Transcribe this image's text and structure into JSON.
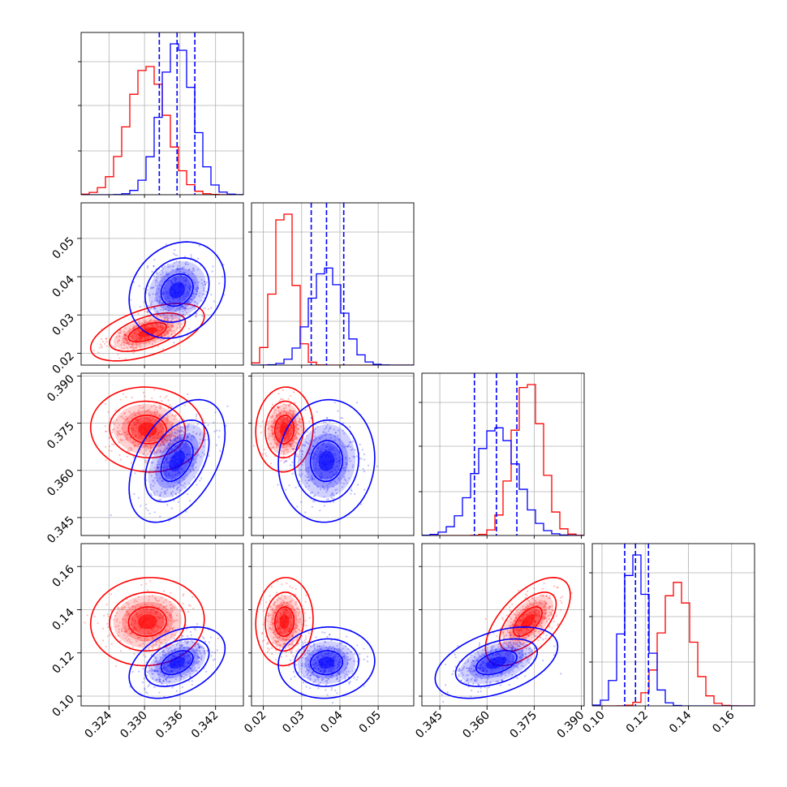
{
  "chart_data": {
    "type": "corner",
    "grid": true,
    "series": [
      {
        "color": "#ff0000",
        "mean": [
          0.3305,
          0.0255,
          0.373,
          0.1345
        ],
        "std": [
          0.0032,
          0.0025,
          0.0045,
          0.0068
        ],
        "corr": [
          [
            1,
            0.55,
            -0.05,
            0.05
          ],
          [
            0.55,
            1,
            0.05,
            0.05
          ],
          [
            -0.05,
            0.05,
            1,
            0.6
          ],
          [
            0.05,
            0.05,
            0.6,
            1
          ]
        ]
      },
      {
        "color": "#0000ff",
        "mean": [
          0.3355,
          0.0365,
          0.363,
          0.1155
        ],
        "std": [
          0.0027,
          0.0042,
          0.0065,
          0.0055
        ],
        "corr": [
          [
            1,
            0.2,
            0.45,
            0.4
          ],
          [
            0.2,
            1,
            0.05,
            0.05
          ],
          [
            0.45,
            0.05,
            1,
            0.45
          ],
          [
            0.4,
            0.05,
            0.45,
            1
          ]
        ],
        "quantiles": [
          [
            0.3325,
            0.3355,
            0.3385
          ],
          [
            0.0325,
            0.0365,
            0.041
          ],
          [
            0.356,
            0.363,
            0.3695
          ],
          [
            0.1105,
            0.1155,
            0.1215
          ]
        ]
      }
    ],
    "ranges": [
      [
        0.3193,
        0.3467
      ],
      [
        0.0169,
        0.0593
      ],
      [
        0.3393,
        0.3909
      ],
      [
        0.0955,
        0.1706
      ]
    ],
    "ticks": [
      [
        "0.324",
        "0.330",
        "0.336",
        "0.342"
      ],
      [
        "0.02",
        "0.03",
        "0.04",
        "0.05"
      ],
      [
        "0.345",
        "0.360",
        "0.375",
        "0.390"
      ],
      [
        "0.10",
        "0.12",
        "0.14",
        "0.16"
      ]
    ],
    "tick_values": [
      [
        0.324,
        0.33,
        0.336,
        0.342
      ],
      [
        0.02,
        0.03,
        0.04,
        0.05
      ],
      [
        0.345,
        0.36,
        0.375,
        0.39
      ],
      [
        0.1,
        0.12,
        0.14,
        0.16
      ]
    ],
    "contour_levels": [
      0.393,
      0.865,
      0.989
    ]
  }
}
